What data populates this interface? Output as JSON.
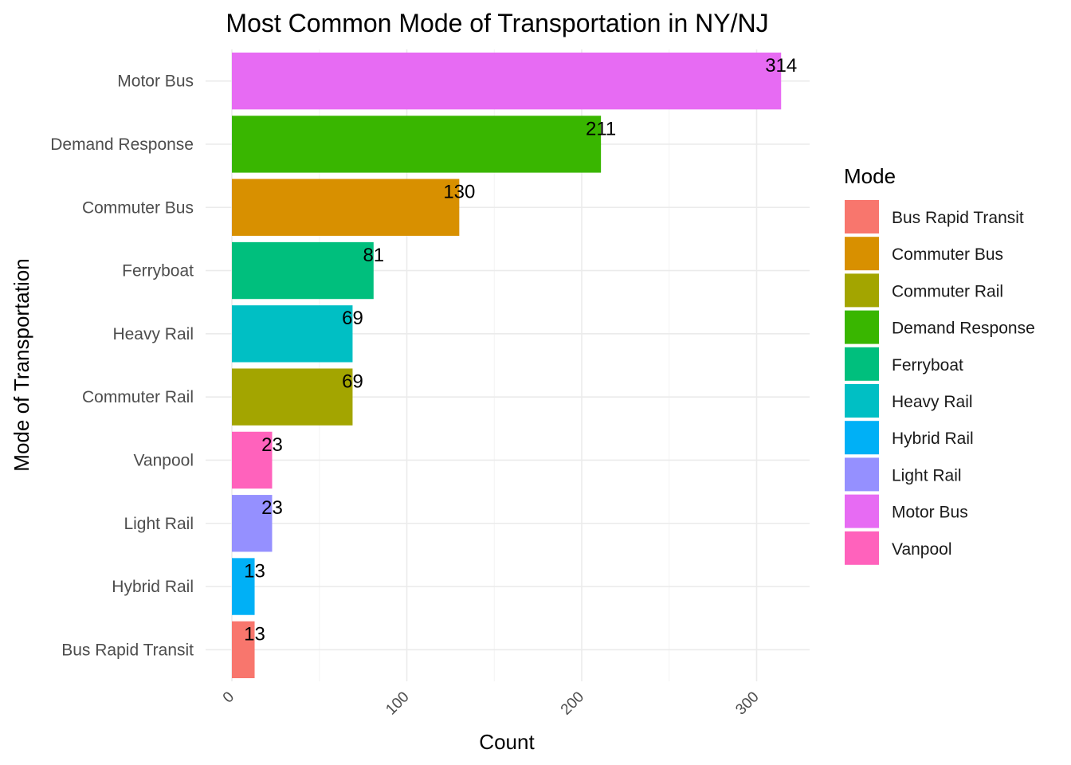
{
  "chart_data": {
    "type": "bar",
    "orientation": "horizontal",
    "title": "Most Common Mode of Transportation in NY/NJ",
    "xlabel": "Count",
    "ylabel": "Mode of Transportation",
    "categories": [
      "Motor Bus",
      "Demand Response",
      "Commuter Bus",
      "Ferryboat",
      "Heavy Rail",
      "Commuter Rail",
      "Vanpool",
      "Light Rail",
      "Hybrid Rail",
      "Bus Rapid Transit"
    ],
    "values": [
      314,
      211,
      130,
      81,
      69,
      69,
      23,
      23,
      13,
      13
    ],
    "data_labels": [
      "314",
      "211",
      "130",
      "81",
      "69",
      "69",
      "23",
      "23",
      "13",
      "13"
    ],
    "xlim": [
      0,
      330
    ],
    "x_ticks": [
      0,
      100,
      200,
      300
    ],
    "x_tick_labels": [
      "0",
      "100",
      "200",
      "300"
    ],
    "grid": true,
    "legend": {
      "title": "Mode",
      "placement": "right",
      "items": [
        "Bus Rapid Transit",
        "Commuter Bus",
        "Commuter Rail",
        "Demand Response",
        "Ferryboat",
        "Heavy Rail",
        "Hybrid Rail",
        "Light Rail",
        "Motor Bus",
        "Vanpool"
      ]
    },
    "colors": {
      "Bus Rapid Transit": "#F8766D",
      "Commuter Bus": "#D89000",
      "Commuter Rail": "#A3A500",
      "Demand Response": "#39B600",
      "Ferryboat": "#00BF7D",
      "Heavy Rail": "#00BFC4",
      "Hybrid Rail": "#00B0F6",
      "Light Rail": "#9590FF",
      "Motor Bus": "#E76BF3",
      "Vanpool": "#FF62BC"
    }
  }
}
